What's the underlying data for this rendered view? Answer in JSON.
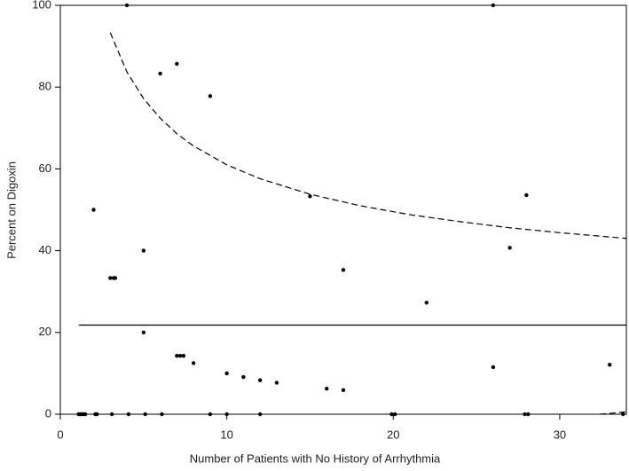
{
  "chart_data": {
    "type": "scatter",
    "xlabel": "Number of Patients with No History of Arrhythmia",
    "ylabel": "Percent on Digoxin",
    "xlim": [
      0,
      34
    ],
    "ylim": [
      0,
      100
    ],
    "xticks": [
      0,
      10,
      20,
      30
    ],
    "yticks": [
      0,
      20,
      40,
      60,
      80,
      100
    ],
    "color": "#000000",
    "points": {
      "x": [
        1.1,
        1.2,
        1.3,
        1.4,
        1.5,
        2.1,
        2.2,
        3.1,
        4.1,
        5.1,
        6.1,
        9,
        10,
        12,
        19.9,
        20.1,
        27.9,
        28.1,
        33.8,
        2,
        3,
        3.2,
        3.3,
        4,
        5,
        5,
        6,
        7,
        9,
        7,
        7.2,
        7.4,
        8,
        10,
        11,
        12,
        13,
        15,
        16,
        17,
        17,
        22,
        26,
        26,
        27,
        28,
        33
      ],
      "y": [
        0,
        0,
        0,
        0,
        0,
        0,
        0,
        0,
        0,
        0,
        0,
        0,
        0,
        0,
        0,
        0,
        0,
        0,
        0,
        50,
        33.3,
        33.3,
        33.3,
        100,
        40,
        20,
        83.3,
        85.7,
        77.8,
        14.3,
        14.3,
        14.3,
        12.5,
        10,
        9.1,
        8.3,
        7.7,
        53.3,
        6.25,
        35.3,
        5.9,
        27.3,
        100,
        11.5,
        40.7,
        53.6,
        12.1
      ]
    },
    "lines": [
      {
        "style": "solid",
        "x": [
          1.1,
          34
        ],
        "y": [
          21.8,
          21.8
        ]
      },
      {
        "style": "dashed",
        "x": [
          3,
          4,
          5,
          6,
          7,
          8,
          10,
          12,
          15,
          18,
          21,
          24,
          27,
          30,
          34
        ],
        "y": [
          93.3,
          83.7,
          77.2,
          72.4,
          68.6,
          65.6,
          61.0,
          57.6,
          53.8,
          51.0,
          48.8,
          47.1,
          45.6,
          44.4,
          43.0
        ]
      },
      {
        "style": "dashed",
        "x": [
          32.4,
          33,
          34
        ],
        "y": [
          0,
          0.2,
          0.6
        ]
      }
    ]
  }
}
